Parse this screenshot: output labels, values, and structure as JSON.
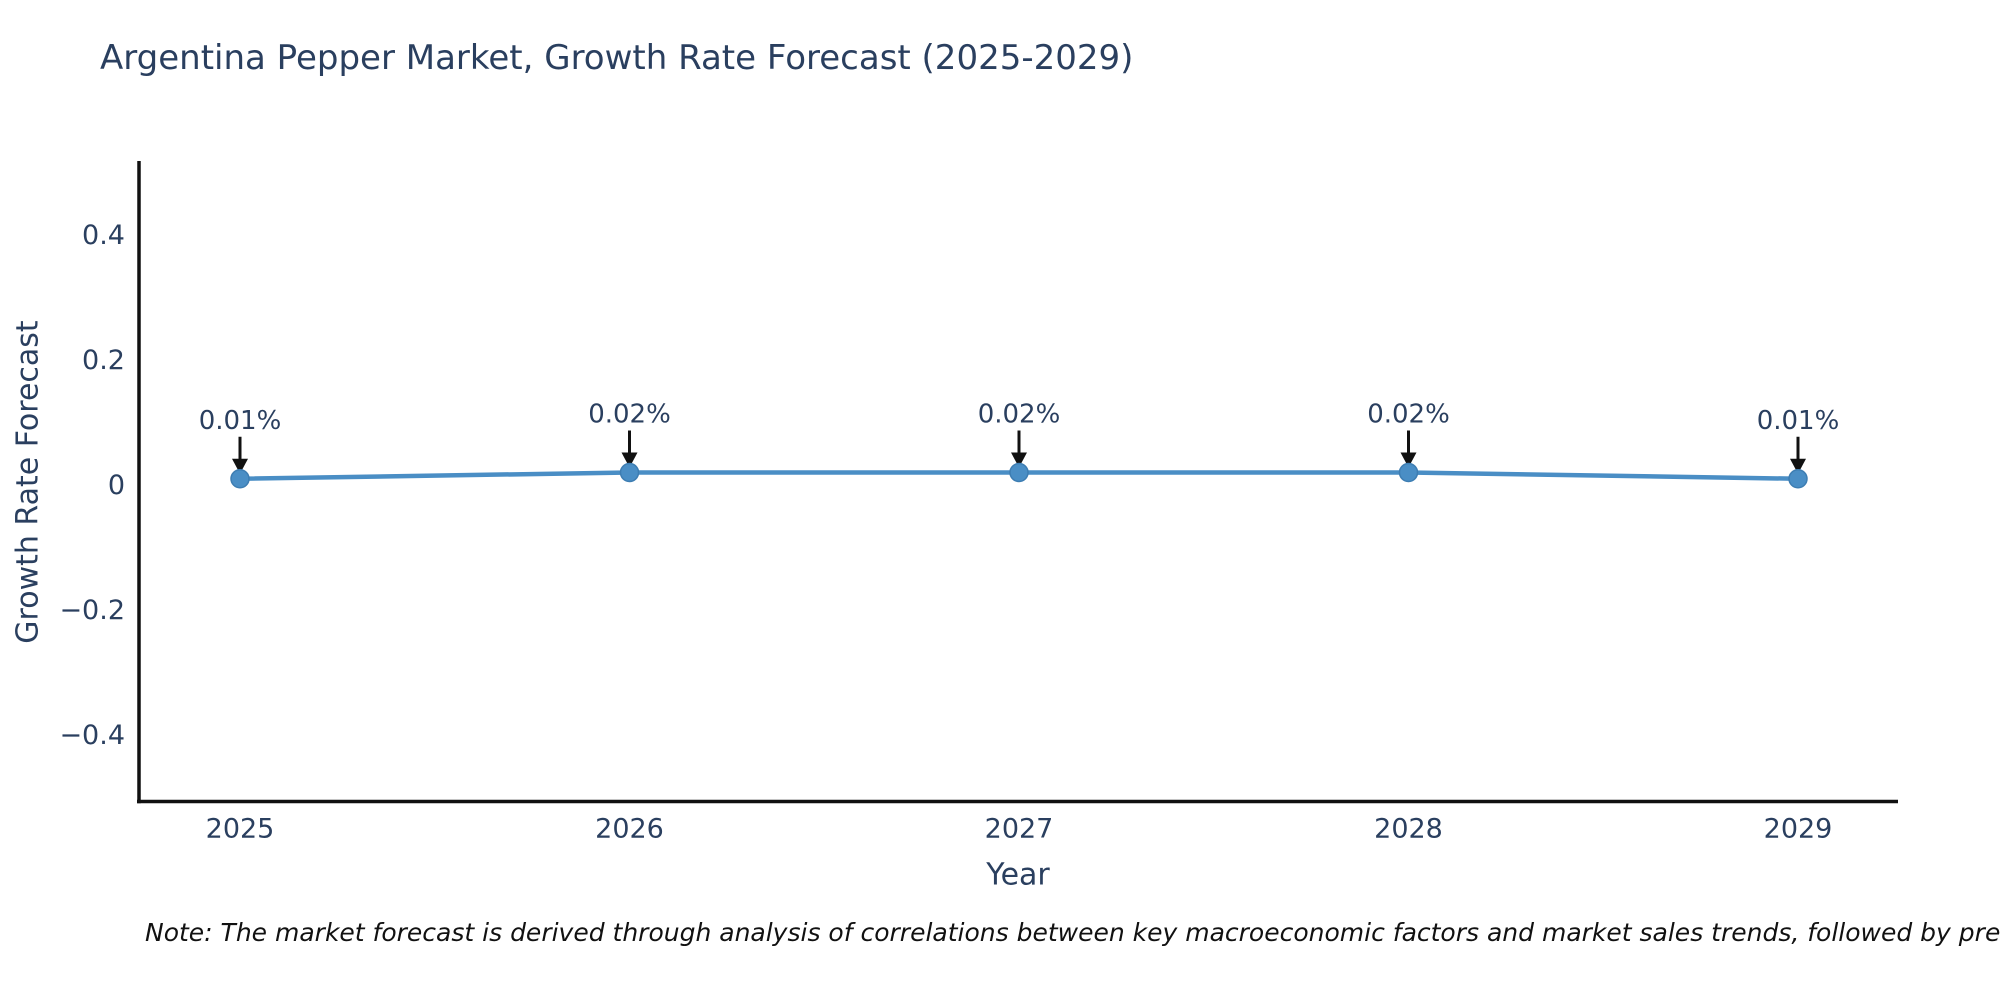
{
  "title": "Argentina Pepper Market, Growth Rate Forecast (2025-2029)",
  "note": "Note: The market forecast is derived through analysis of correlations between key macroeconomic factors and market sales trends, followed by predictive modeling to project future sales",
  "chart_data": {
    "type": "line",
    "title": "Argentina Pepper Market, Growth Rate Forecast (2025-2029)",
    "xlabel": "Year",
    "ylabel": "Growth Rate Forecast",
    "x": [
      2025,
      2026,
      2027,
      2028,
      2029
    ],
    "x_tick_labels": [
      "2025",
      "2026",
      "2027",
      "2028",
      "2029"
    ],
    "series": [
      {
        "name": "Growth Rate Forecast",
        "values": [
          0.01,
          0.02,
          0.02,
          0.02,
          0.01
        ]
      }
    ],
    "point_annotations": [
      "0.01%",
      "0.02%",
      "0.02%",
      "0.02%",
      "0.01%"
    ],
    "y_ticks": [
      0.4,
      0.2,
      0,
      -0.2,
      -0.4
    ],
    "y_tick_labels": [
      "0.4",
      "0.2",
      "0",
      "−0.2",
      "−0.4"
    ],
    "ylim": [
      -0.51,
      0.52
    ],
    "xlim": [
      2024.74,
      2029.26
    ],
    "grid": false,
    "legend_position": "none",
    "colors": {
      "line": "#4a8ec5",
      "marker": "#4a8ec5",
      "marker_edge": "#3d7db2",
      "text": "#2a3f5f",
      "axis": "#111111",
      "arrow": "#111111",
      "background": "#ffffff"
    }
  }
}
